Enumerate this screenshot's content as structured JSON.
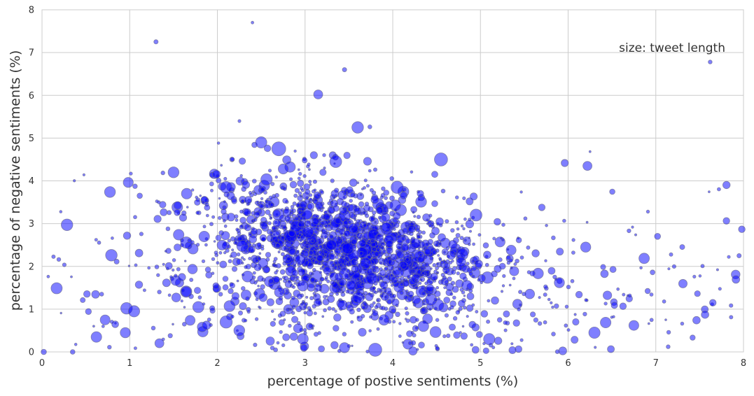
{
  "chart_data": {
    "type": "scatter",
    "title": "",
    "xlabel": "percentage of postive sentiments (%)",
    "ylabel": "percentage of negative sentiments (%)",
    "annotation": "size: tweet length",
    "xlim": [
      0,
      8
    ],
    "ylim": [
      0,
      8
    ],
    "xticks": [
      "0",
      "1",
      "2",
      "3",
      "4",
      "5",
      "6",
      "7",
      "8"
    ],
    "yticks": [
      "0",
      "1",
      "2",
      "3",
      "4",
      "5",
      "6",
      "7",
      "8"
    ],
    "grid": true,
    "legend": "none",
    "marker_color": "#0000ff",
    "marker_edge_color": "#666688",
    "marker_opacity": 0.5,
    "size_encoding": "tweet length",
    "highlighted_points": [
      {
        "x": 3.15,
        "y": 6.02,
        "size": 110
      },
      {
        "x": 3.6,
        "y": 5.25,
        "size": 180
      },
      {
        "x": 2.5,
        "y": 4.9,
        "size": 170
      },
      {
        "x": 2.7,
        "y": 4.75,
        "size": 260
      },
      {
        "x": 4.55,
        "y": 4.5,
        "size": 230
      },
      {
        "x": 1.5,
        "y": 4.2,
        "size": 160
      },
      {
        "x": 6.22,
        "y": 4.35,
        "size": 110
      },
      {
        "x": 3.35,
        "y": 4.45,
        "size": 190
      },
      {
        "x": 3.1,
        "y": 4.6,
        "size": 70
      },
      {
        "x": 1.65,
        "y": 3.7,
        "size": 150
      },
      {
        "x": 2.1,
        "y": 3.85,
        "size": 180
      },
      {
        "x": 4.05,
        "y": 3.85,
        "size": 200
      },
      {
        "x": 4.95,
        "y": 3.2,
        "size": 190
      },
      {
        "x": 1.85,
        "y": 2.7,
        "size": 150
      },
      {
        "x": 6.2,
        "y": 2.45,
        "size": 140
      },
      {
        "x": 6.3,
        "y": 0.45,
        "size": 170
      },
      {
        "x": 5.1,
        "y": 0.3,
        "size": 170
      },
      {
        "x": 3.8,
        "y": 0.05,
        "size": 230
      },
      {
        "x": 3.45,
        "y": 0.1,
        "size": 140
      },
      {
        "x": 2.25,
        "y": 0.5,
        "size": 160
      },
      {
        "x": 2.1,
        "y": 0.7,
        "size": 200
      },
      {
        "x": 0.62,
        "y": 0.35,
        "size": 150
      },
      {
        "x": 0.95,
        "y": 0.45,
        "size": 140
      },
      {
        "x": 1.05,
        "y": 0.95,
        "size": 170
      },
      {
        "x": 0.72,
        "y": 0.75,
        "size": 130
      },
      {
        "x": 0.02,
        "y": 0.0,
        "size": 40
      },
      {
        "x": 0.35,
        "y": 0.0,
        "size": 30
      },
      {
        "x": 6.75,
        "y": 0.62,
        "size": 130
      },
      {
        "x": 5.9,
        "y": 1.62,
        "size": 140
      },
      {
        "x": 7.65,
        "y": 1.15,
        "size": 60
      },
      {
        "x": 1.3,
        "y": 7.25,
        "size": 25
      },
      {
        "x": 7.62,
        "y": 6.78,
        "size": 20
      },
      {
        "x": 2.4,
        "y": 7.7,
        "size": 10
      },
      {
        "x": 3.45,
        "y": 6.6,
        "size": 25
      },
      {
        "x": 7.95,
        "y": 2.25,
        "size": 25
      },
      {
        "x": 4.78,
        "y": 2.1,
        "size": 120
      },
      {
        "x": 3.9,
        "y": 0.75,
        "size": 150
      },
      {
        "x": 4.35,
        "y": 0.6,
        "size": 150
      },
      {
        "x": 5.35,
        "y": 2.38,
        "size": 130
      },
      {
        "x": 5.7,
        "y": 3.38,
        "size": 60
      }
    ],
    "cloud_summary": {
      "point_count_estimate": 2200,
      "center_x": 3.45,
      "center_y": 2.5,
      "spread_x": 0.9,
      "spread_y": 0.85,
      "x_range": [
        0,
        8
      ],
      "y_range": [
        0,
        7.7
      ]
    }
  }
}
